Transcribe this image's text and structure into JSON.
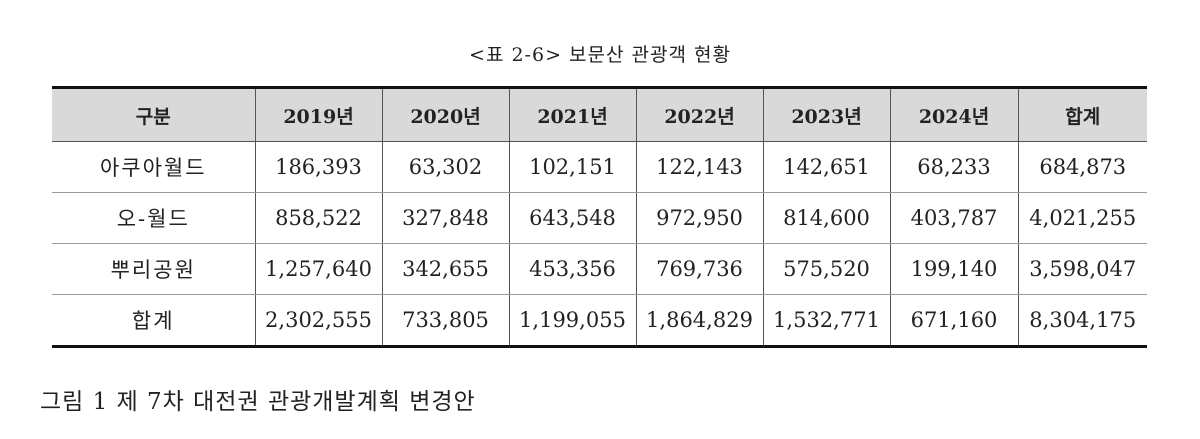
{
  "table_title": "<표 2-6> 보문산 관광객 현황",
  "headers": [
    "구분",
    "2019년",
    "2020년",
    "2021년",
    "2022년",
    "2023년",
    "2024년",
    "합계"
  ],
  "rows": [
    {
      "label": "아쿠아월드",
      "values": [
        "186,393",
        "63,302",
        "102,151",
        "122,143",
        "142,651",
        "68,233",
        "684,873"
      ]
    },
    {
      "label": "오-월드",
      "values": [
        "858,522",
        "327,848",
        "643,548",
        "972,950",
        "814,600",
        "403,787",
        "4,021,255"
      ]
    },
    {
      "label": "뿌리공원",
      "values": [
        "1,257,640",
        "342,655",
        "453,356",
        "769,736",
        "575,520",
        "199,140",
        "3,598,047"
      ]
    },
    {
      "label": "합계",
      "values": [
        "2,302,555",
        "733,805",
        "1,199,055",
        "1,864,829",
        "1,532,771",
        "671,160",
        "8,304,175"
      ]
    }
  ],
  "figure_caption": "그림 1 제 7차 대전권 관광개발계획 변경안"
}
